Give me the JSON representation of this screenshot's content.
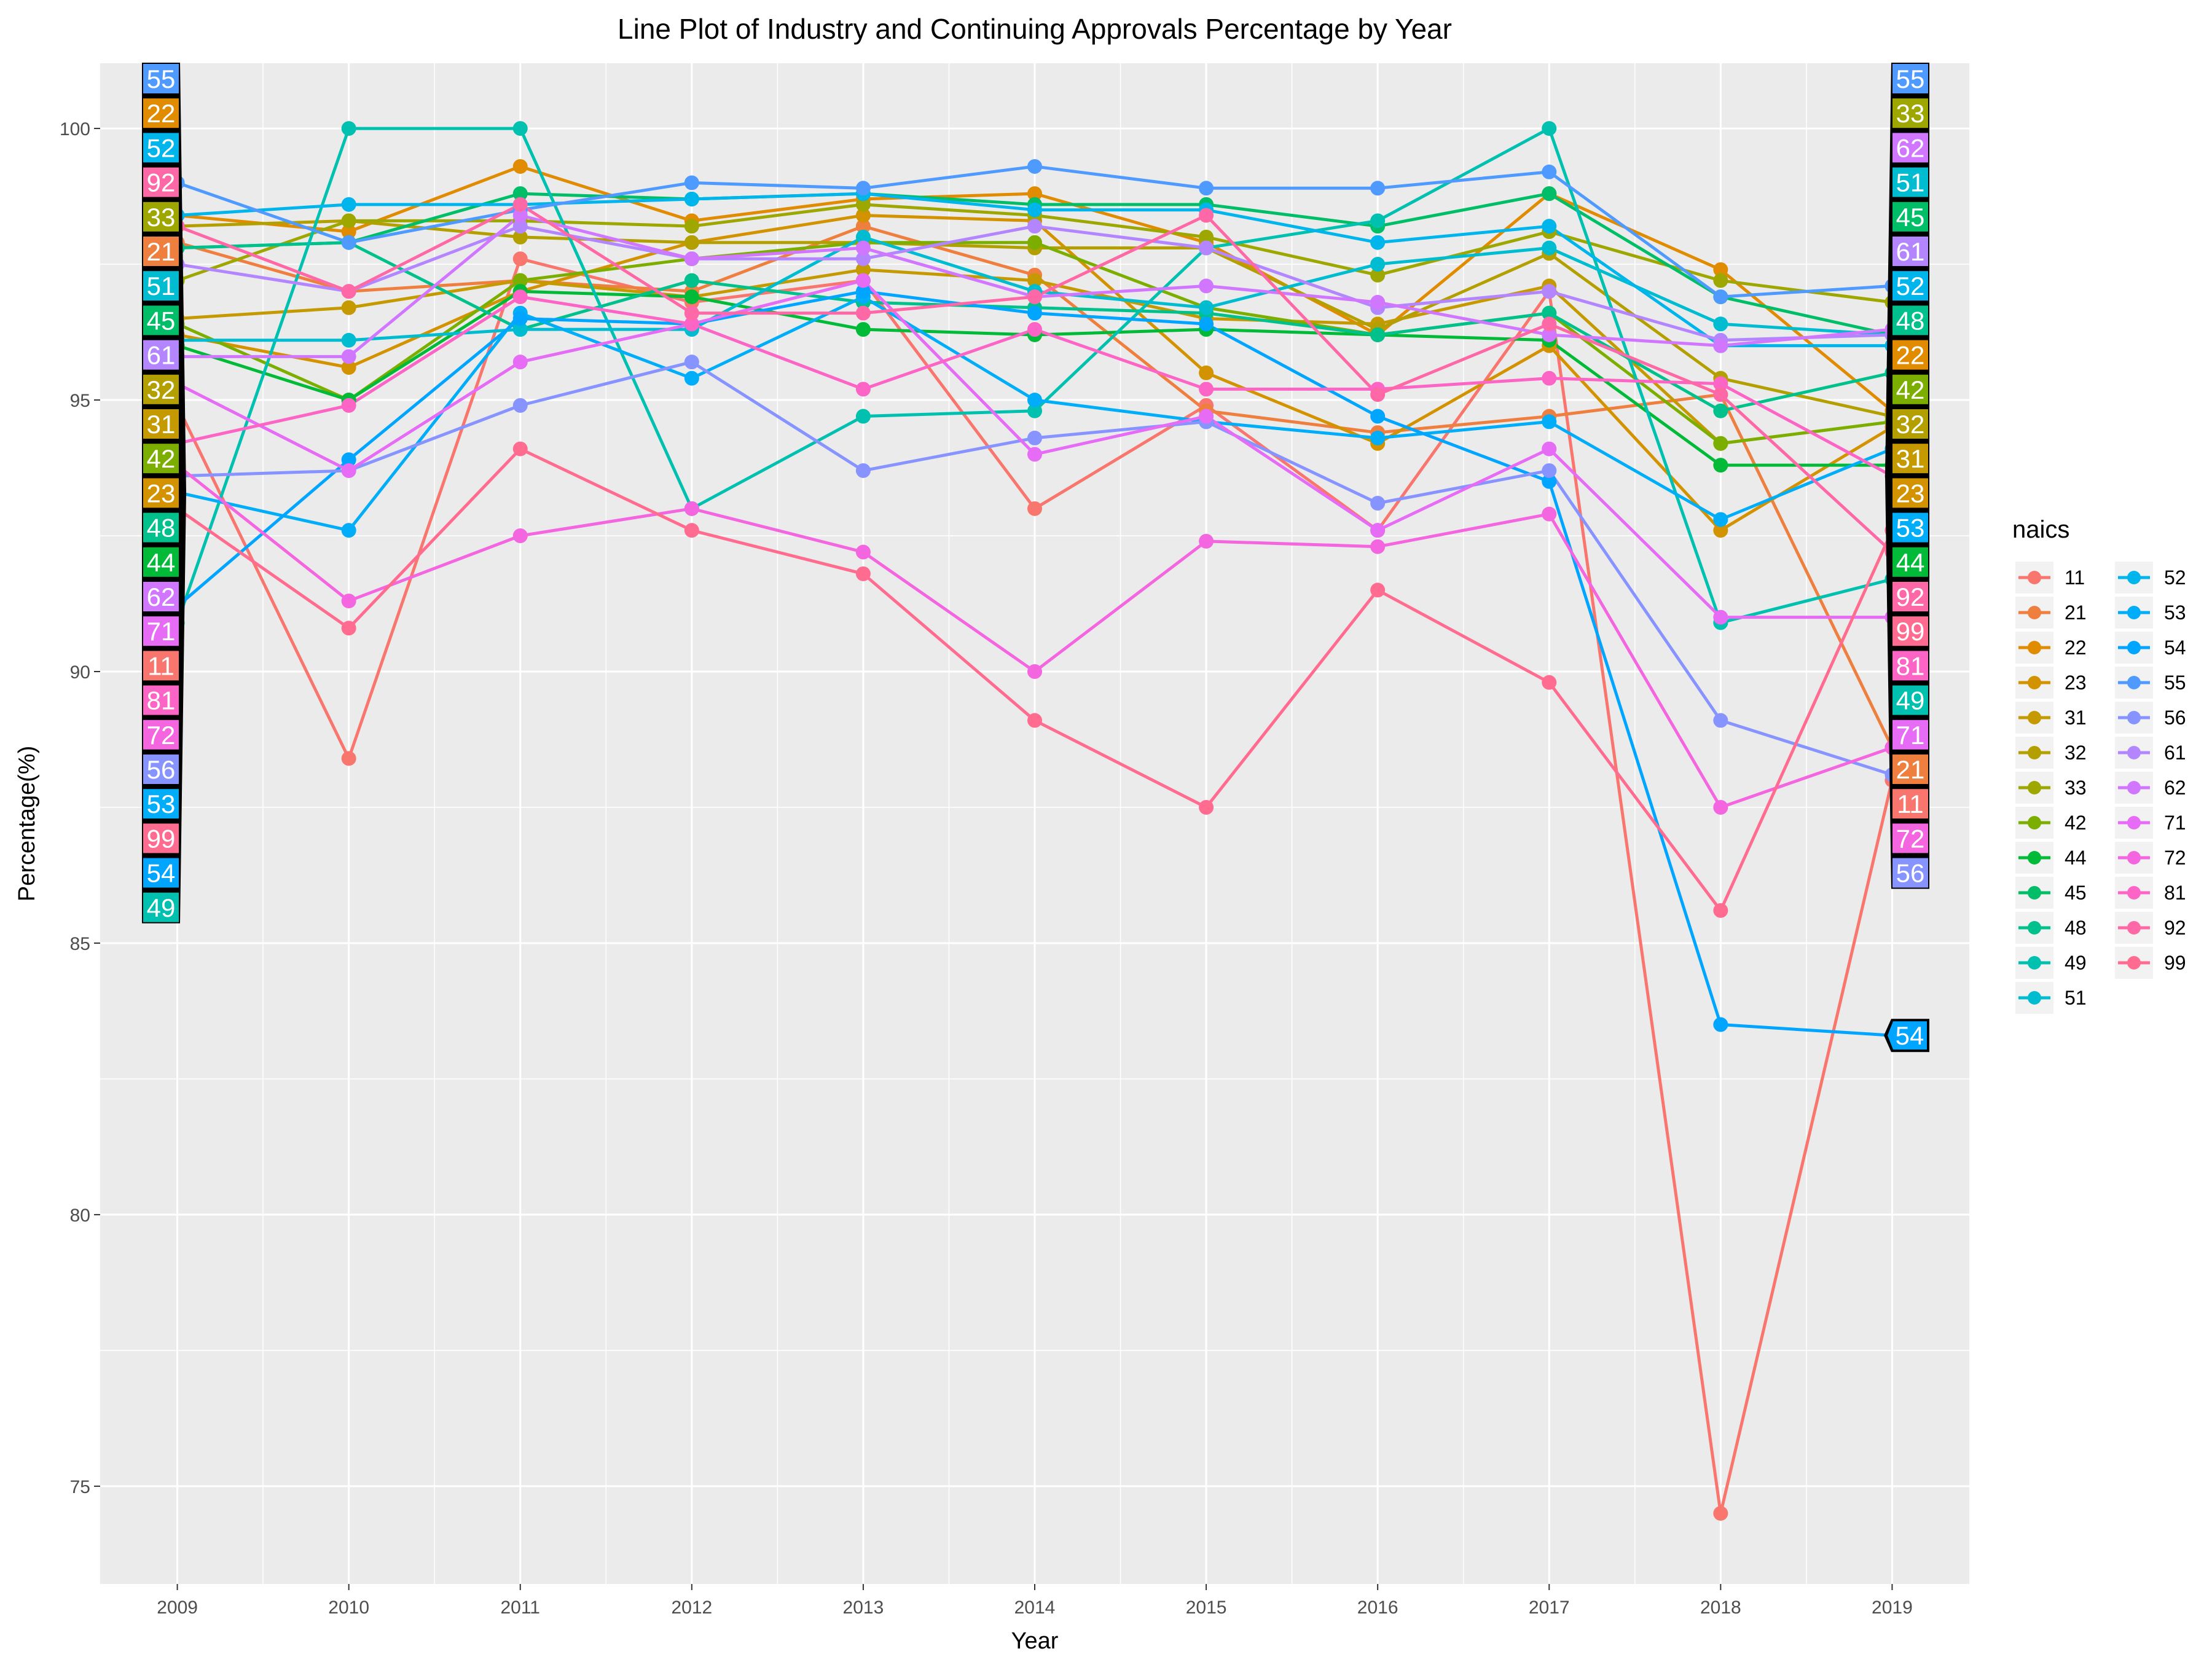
{
  "chart_data": {
    "type": "line",
    "title": "Line Plot of Industry and Continuing Approvals Percentage by Year",
    "xlabel": "Year",
    "ylabel": "Percentage(%)",
    "x": [
      2009,
      2010,
      2011,
      2012,
      2013,
      2014,
      2015,
      2016,
      2017,
      2018,
      2019
    ],
    "xlim": [
      2008.55,
      2019.45
    ],
    "ylim": [
      73.2,
      101.2
    ],
    "yticks": [
      75,
      80,
      85,
      90,
      95,
      100
    ],
    "grid": true,
    "legend": {
      "title": "naics",
      "placement": "right"
    },
    "series": [
      {
        "name": "11",
        "color": "#F8766D",
        "values": [
          94.9,
          88.4,
          97.6,
          96.8,
          97.2,
          93.0,
          94.9,
          92.6,
          97.0,
          74.5,
          88.0
        ]
      },
      {
        "name": "21",
        "color": "#EE7F3F",
        "values": [
          97.9,
          97.0,
          97.2,
          97.0,
          98.2,
          97.3,
          94.8,
          94.4,
          94.7,
          95.1,
          88.6
        ]
      },
      {
        "name": "22",
        "color": "#E08B00",
        "values": [
          98.4,
          98.1,
          99.3,
          98.3,
          98.7,
          98.8,
          97.9,
          96.2,
          98.8,
          97.4,
          94.8
        ]
      },
      {
        "name": "23",
        "color": "#D39200",
        "values": [
          96.2,
          95.6,
          97.0,
          97.9,
          98.4,
          98.3,
          95.5,
          94.2,
          96.0,
          92.6,
          94.5
        ]
      },
      {
        "name": "31",
        "color": "#C49A00",
        "values": [
          96.5,
          96.7,
          97.2,
          96.9,
          97.4,
          97.2,
          96.5,
          96.4,
          97.1,
          94.2,
          94.6
        ]
      },
      {
        "name": "32",
        "color": "#B3A000",
        "values": [
          98.2,
          98.3,
          98.0,
          97.9,
          97.9,
          97.8,
          97.8,
          96.3,
          97.7,
          95.4,
          94.7
        ]
      },
      {
        "name": "33",
        "color": "#9DA700",
        "values": [
          97.2,
          98.3,
          98.3,
          98.2,
          98.6,
          98.4,
          98.0,
          97.3,
          98.1,
          97.2,
          96.8
        ]
      },
      {
        "name": "42",
        "color": "#7CAE00",
        "values": [
          96.4,
          95.0,
          97.2,
          97.6,
          97.9,
          97.9,
          96.7,
          96.2,
          96.6,
          94.2,
          94.6
        ]
      },
      {
        "name": "44",
        "color": "#00BA38",
        "values": [
          96.0,
          95.0,
          97.0,
          96.9,
          96.3,
          96.2,
          96.3,
          96.2,
          96.1,
          93.8,
          93.8
        ]
      },
      {
        "name": "45",
        "color": "#00BE67",
        "values": [
          97.8,
          97.9,
          98.8,
          98.7,
          98.8,
          98.6,
          98.6,
          98.2,
          98.8,
          96.9,
          96.2
        ]
      },
      {
        "name": "48",
        "color": "#00C08B",
        "values": [
          97.8,
          97.9,
          96.3,
          97.2,
          96.8,
          96.7,
          96.6,
          96.2,
          96.6,
          94.8,
          95.5
        ]
      },
      {
        "name": "49",
        "color": "#00C0AF",
        "values": [
          90.9,
          100.0,
          100.0,
          93.0,
          94.7,
          94.8,
          97.8,
          98.3,
          100.0,
          90.9,
          91.7
        ]
      },
      {
        "name": "51",
        "color": "#00BCD0",
        "values": [
          96.1,
          96.1,
          96.3,
          96.3,
          98.0,
          97.0,
          96.7,
          97.5,
          97.8,
          96.4,
          96.2
        ]
      },
      {
        "name": "52",
        "color": "#00B5EB",
        "values": [
          98.4,
          98.6,
          98.6,
          98.7,
          98.8,
          98.5,
          98.5,
          97.9,
          98.2,
          96.0,
          96.0
        ]
      },
      {
        "name": "53",
        "color": "#00ADF8",
        "values": [
          93.3,
          92.6,
          96.6,
          95.4,
          96.9,
          95.0,
          94.6,
          94.3,
          94.6,
          92.8,
          94.1
        ]
      },
      {
        "name": "54",
        "color": "#00A5FF",
        "values": [
          91.2,
          93.9,
          96.5,
          96.4,
          97.0,
          96.6,
          96.4,
          94.7,
          93.5,
          83.5,
          83.3
        ]
      },
      {
        "name": "55",
        "color": "#4E9AFF",
        "values": [
          99.0,
          97.9,
          98.5,
          99.0,
          98.9,
          99.3,
          98.9,
          98.9,
          99.2,
          96.9,
          97.1
        ]
      },
      {
        "name": "56",
        "color": "#8794FF",
        "values": [
          93.6,
          93.7,
          94.9,
          95.7,
          93.7,
          94.3,
          94.6,
          93.1,
          93.7,
          89.1,
          88.1
        ]
      },
      {
        "name": "61",
        "color": "#B386FF",
        "values": [
          97.5,
          97.0,
          98.2,
          97.6,
          97.6,
          98.2,
          97.8,
          96.7,
          97.0,
          96.1,
          96.2
        ]
      },
      {
        "name": "62",
        "color": "#D177FF",
        "values": [
          95.8,
          95.8,
          98.4,
          97.6,
          97.8,
          96.9,
          97.1,
          96.8,
          96.2,
          96.0,
          96.3
        ]
      },
      {
        "name": "71",
        "color": "#E66BF5",
        "values": [
          95.3,
          93.7,
          95.7,
          96.4,
          97.2,
          94.0,
          94.7,
          92.6,
          94.1,
          91.0,
          91.0
        ]
      },
      {
        "name": "72",
        "color": "#F466E0",
        "values": [
          93.8,
          91.3,
          92.5,
          93.0,
          92.2,
          90.0,
          92.4,
          92.3,
          92.9,
          87.5,
          88.6
        ]
      },
      {
        "name": "81",
        "color": "#FC65C5",
        "values": [
          94.2,
          94.9,
          96.9,
          96.4,
          95.2,
          96.3,
          95.2,
          95.2,
          95.4,
          95.3,
          93.6
        ]
      },
      {
        "name": "92",
        "color": "#FF68A6",
        "values": [
          98.2,
          97.0,
          98.6,
          96.6,
          96.6,
          96.9,
          98.4,
          95.1,
          96.4,
          95.1,
          92.2
        ]
      },
      {
        "name": "99",
        "color": "#FF6C90",
        "values": [
          93.0,
          90.8,
          94.1,
          92.6,
          91.8,
          89.1,
          87.5,
          91.5,
          89.8,
          85.6,
          92.6
        ]
      }
    ],
    "left_label_order": [
      "55",
      "22",
      "52",
      "92",
      "33",
      "21",
      "51",
      "45",
      "61",
      "32",
      "31",
      "42",
      "23",
      "48",
      "44",
      "62",
      "71",
      "11",
      "81",
      "72",
      "56",
      "53",
      "99",
      "54",
      "49"
    ],
    "right_label_order": [
      "55",
      "33",
      "62",
      "51",
      "45",
      "61",
      "52",
      "48",
      "22",
      "42",
      "32",
      "31",
      "23",
      "53",
      "44",
      "92",
      "99",
      "81",
      "49",
      "71",
      "21",
      "11",
      "72",
      "56"
    ],
    "right_label_54": "54"
  }
}
